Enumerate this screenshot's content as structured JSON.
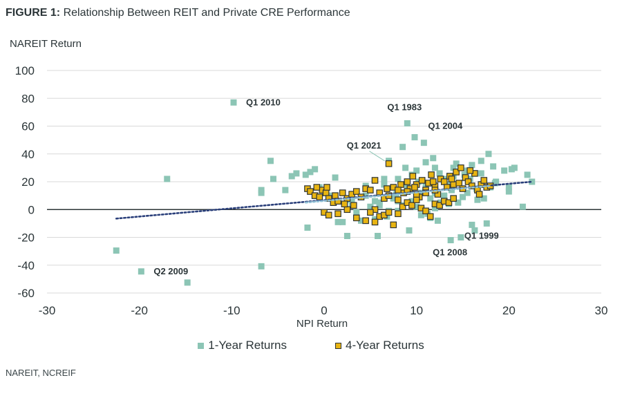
{
  "title_bold": "FIGURE 1:",
  "title_rest": " Relationship Between REIT and Private CRE Performance",
  "source": "NAREIT, NCREIF",
  "colors": {
    "one_year": "#8cc5b5",
    "four_year": "#e8b412",
    "four_year_border": "#2d3335",
    "zero_line": "#2c3436",
    "grid": "#d9d9d9",
    "trend_one_year": "#2a3f7a",
    "trend_four_year": "#8fbfd4"
  },
  "chart_data": {
    "type": "scatter",
    "title": "Relationship Between REIT and Private CRE Performance",
    "xlabel": "NPI Return",
    "ylabel": "NAREIT Return",
    "xlim": [
      -30,
      30
    ],
    "ylim": [
      -60,
      100
    ],
    "xticks": [
      -30,
      -20,
      -10,
      0,
      10,
      20,
      30
    ],
    "yticks": [
      100,
      80,
      60,
      40,
      20,
      0,
      -20,
      -40,
      -60
    ],
    "grid": "horizontal",
    "legend_position": "bottom",
    "series": [
      {
        "name": "1-Year Returns",
        "marker": "square",
        "points": [
          [
            -22.5,
            -29.5
          ],
          [
            -19.8,
            -44.5
          ],
          [
            -14.8,
            -52.5
          ],
          [
            -17.0,
            22
          ],
          [
            -9.8,
            77
          ],
          [
            -6.8,
            -40.8
          ],
          [
            -6.8,
            12
          ],
          [
            -6.8,
            14
          ],
          [
            -5.8,
            35
          ],
          [
            -5.5,
            22
          ],
          [
            -4.2,
            14
          ],
          [
            -3.5,
            24
          ],
          [
            -3.0,
            26
          ],
          [
            -2.0,
            25
          ],
          [
            -1.8,
            -13
          ],
          [
            -1.5,
            27
          ],
          [
            -1.0,
            29
          ],
          [
            -0.5,
            16
          ],
          [
            0.5,
            10
          ],
          [
            1.2,
            23
          ],
          [
            1.5,
            -9
          ],
          [
            2.0,
            -9
          ],
          [
            2.5,
            -19
          ],
          [
            2.5,
            7
          ],
          [
            3.0,
            3
          ],
          [
            3.5,
            -2
          ],
          [
            4.0,
            -8
          ],
          [
            4.5,
            17
          ],
          [
            5.0,
            2
          ],
          [
            5.5,
            -7
          ],
          [
            5.8,
            -19
          ],
          [
            6.0,
            5
          ],
          [
            6.5,
            22
          ],
          [
            6.8,
            -5
          ],
          [
            7.0,
            35
          ],
          [
            7.5,
            8
          ],
          [
            8.0,
            -1
          ],
          [
            8.0,
            14
          ],
          [
            8.5,
            45
          ],
          [
            8.8,
            30
          ],
          [
            9.0,
            62
          ],
          [
            9.2,
            -15
          ],
          [
            9.5,
            25
          ],
          [
            9.8,
            52
          ],
          [
            10.2,
            20
          ],
          [
            10.5,
            12
          ],
          [
            10.8,
            48
          ],
          [
            11.0,
            34
          ],
          [
            11.2,
            -3
          ],
          [
            11.5,
            -6
          ],
          [
            11.8,
            37
          ],
          [
            12.0,
            30
          ],
          [
            12.3,
            -8
          ],
          [
            12.6,
            5
          ],
          [
            13.0,
            10
          ],
          [
            13.3,
            18
          ],
          [
            13.7,
            -22
          ],
          [
            14.0,
            24
          ],
          [
            14.3,
            33
          ],
          [
            14.5,
            5
          ],
          [
            14.8,
            -20
          ],
          [
            15.2,
            25
          ],
          [
            15.5,
            12
          ],
          [
            15.8,
            22
          ],
          [
            16.0,
            -11
          ],
          [
            16.3,
            -15
          ],
          [
            16.6,
            7
          ],
          [
            17.0,
            35
          ],
          [
            17.3,
            8
          ],
          [
            17.6,
            -10
          ],
          [
            17.8,
            40
          ],
          [
            18.0,
            16
          ],
          [
            18.3,
            31
          ],
          [
            18.6,
            20
          ],
          [
            19.5,
            28
          ],
          [
            20.0,
            16
          ],
          [
            20.0,
            13
          ],
          [
            20.3,
            29
          ],
          [
            20.6,
            30
          ],
          [
            21.5,
            2
          ],
          [
            22.0,
            25
          ],
          [
            22.5,
            20
          ],
          [
            6.0,
            3
          ],
          [
            7.0,
            -1
          ],
          [
            8.5,
            3
          ],
          [
            9.5,
            6
          ],
          [
            10.5,
            -4
          ],
          [
            12.0,
            1
          ],
          [
            13.5,
            4
          ],
          [
            15.0,
            9
          ],
          [
            16.5,
            15
          ],
          [
            8.0,
            22
          ],
          [
            10.0,
            28
          ],
          [
            12.5,
            26
          ],
          [
            14.0,
            30
          ],
          [
            16.0,
            32
          ],
          [
            4.5,
            10
          ],
          [
            3.0,
            6
          ],
          [
            7.8,
            11
          ],
          [
            11.0,
            18
          ],
          [
            13.0,
            22
          ],
          [
            18.5,
            19
          ],
          [
            6.5,
            18
          ],
          [
            9.0,
            16
          ],
          [
            17.0,
            26
          ],
          [
            15.5,
            28
          ],
          [
            11.5,
            8
          ],
          [
            13.8,
            14
          ],
          [
            5.5,
            6
          ],
          [
            10.0,
            2
          ],
          [
            8.0,
            6
          ],
          [
            12.0,
            12
          ]
        ]
      },
      {
        "name": "4-Year Returns",
        "marker": "square-outlined",
        "points": [
          [
            -1.8,
            15
          ],
          [
            -1.5,
            13
          ],
          [
            -1.0,
            10
          ],
          [
            -0.5,
            9
          ],
          [
            -0.2,
            14
          ],
          [
            0.2,
            12
          ],
          [
            0.5,
            8
          ],
          [
            1.0,
            5
          ],
          [
            1.2,
            10
          ],
          [
            1.5,
            6
          ],
          [
            2.0,
            12
          ],
          [
            2.5,
            8
          ],
          [
            3.0,
            11
          ],
          [
            3.5,
            13
          ],
          [
            4.0,
            9
          ],
          [
            4.5,
            15
          ],
          [
            5.0,
            14
          ],
          [
            5.5,
            21
          ],
          [
            6.0,
            12
          ],
          [
            6.5,
            8
          ],
          [
            7.0,
            10
          ],
          [
            7.5,
            16
          ],
          [
            8.0,
            7
          ],
          [
            8.3,
            18
          ],
          [
            8.6,
            12
          ],
          [
            9.0,
            20
          ],
          [
            9.3,
            15
          ],
          [
            9.6,
            24
          ],
          [
            10.0,
            18
          ],
          [
            10.3,
            9
          ],
          [
            10.6,
            21
          ],
          [
            11.0,
            14
          ],
          [
            11.3,
            19
          ],
          [
            11.6,
            25
          ],
          [
            12.0,
            17
          ],
          [
            12.3,
            11
          ],
          [
            12.6,
            22
          ],
          [
            13.0,
            20
          ],
          [
            13.3,
            16
          ],
          [
            13.6,
            24
          ],
          [
            14.0,
            18
          ],
          [
            14.3,
            27
          ],
          [
            14.6,
            19
          ],
          [
            15.0,
            15
          ],
          [
            15.3,
            23
          ],
          [
            15.6,
            20
          ],
          [
            16.0,
            17
          ],
          [
            16.3,
            26
          ],
          [
            16.6,
            14
          ],
          [
            17.0,
            18
          ],
          [
            17.3,
            21
          ],
          [
            17.6,
            16
          ],
          [
            18.0,
            17
          ],
          [
            7.0,
            33
          ],
          [
            5.5,
            0
          ],
          [
            6.0,
            -5
          ],
          [
            6.5,
            -4
          ],
          [
            7.0,
            -2
          ],
          [
            7.5,
            -11
          ],
          [
            8.0,
            -3
          ],
          [
            8.5,
            2
          ],
          [
            9.0,
            5
          ],
          [
            9.5,
            3
          ],
          [
            10.0,
            7
          ],
          [
            10.5,
            1
          ],
          [
            11.0,
            -1
          ],
          [
            11.5,
            -5
          ],
          [
            12.0,
            4
          ],
          [
            12.5,
            3
          ],
          [
            13.0,
            6
          ],
          [
            13.5,
            5
          ],
          [
            14.0,
            8
          ],
          [
            3.5,
            -6
          ],
          [
            4.5,
            -8
          ],
          [
            5.5,
            -9
          ],
          [
            0.0,
            -2
          ],
          [
            0.5,
            -4
          ],
          [
            1.5,
            -3
          ],
          [
            2.5,
            0
          ],
          [
            5.0,
            -2
          ],
          [
            9.0,
            13
          ],
          [
            10.0,
            11
          ],
          [
            11.0,
            12
          ],
          [
            12.0,
            14
          ],
          [
            8.0,
            14
          ],
          [
            6.8,
            15
          ],
          [
            9.8,
            16
          ],
          [
            11.8,
            20
          ],
          [
            13.8,
            22
          ],
          [
            15.8,
            28
          ],
          [
            14.8,
            30
          ],
          [
            16.8,
            11
          ],
          [
            -0.8,
            16
          ],
          [
            0.3,
            16
          ],
          [
            2.2,
            4
          ],
          [
            3.2,
            3
          ]
        ]
      }
    ],
    "trendlines": [
      {
        "series": "1-Year Returns",
        "x": [
          -22.5,
          22.5
        ],
        "y": [
          -6.5,
          20
        ]
      },
      {
        "series": "4-Year Returns",
        "x": [
          -2,
          18
        ],
        "y": [
          5,
          17
        ]
      }
    ],
    "annotations": [
      {
        "text": "Q1 2010",
        "x": -9.8,
        "y": 77
      },
      {
        "text": "Q1 1983",
        "x": 9.0,
        "y": 62
      },
      {
        "text": "Q1 2004",
        "x": 10.5,
        "y": 52
      },
      {
        "text": "Q1 2021",
        "x": 7.0,
        "y": 33
      },
      {
        "text": "Q1 1999",
        "x": 16.3,
        "y": -15
      },
      {
        "text": "Q1 2008",
        "x": 13.7,
        "y": -22
      },
      {
        "text": "Q2 2009",
        "x": -19.8,
        "y": -44.5
      }
    ]
  }
}
